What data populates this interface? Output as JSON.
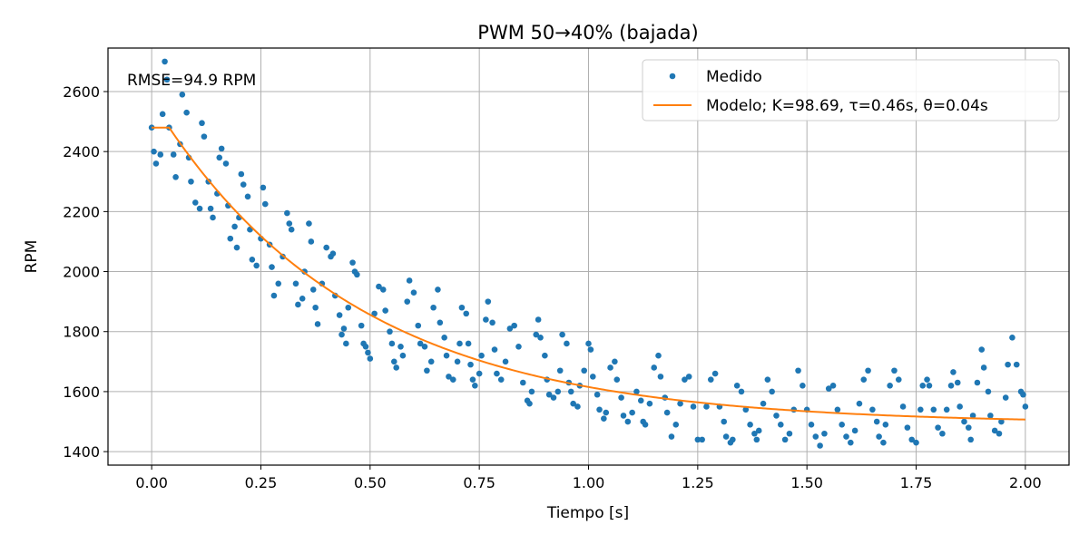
{
  "chart_data": {
    "type": "scatter",
    "title": "PWM 50→40% (bajada)",
    "xlabel": "Tiempo [s]",
    "ylabel": "RPM",
    "xlim": [
      -0.1,
      2.1
    ],
    "ylim": [
      1355,
      2745
    ],
    "xticks": [
      "0.00",
      "0.25",
      "0.50",
      "0.75",
      "1.00",
      "1.25",
      "1.50",
      "1.75",
      "2.00"
    ],
    "yticks": [
      "1400",
      "1600",
      "1800",
      "2000",
      "2200",
      "2400",
      "2600"
    ],
    "grid": true,
    "legend_position": "top-right",
    "annotation": "RMSE=94.9 RPM",
    "series": [
      {
        "name": "Medido",
        "kind": "scatter",
        "color": "#1f77b4",
        "points": [
          [
            0.0,
            2480
          ],
          [
            0.005,
            2400
          ],
          [
            0.01,
            2360
          ],
          [
            0.02,
            2390
          ],
          [
            0.025,
            2525
          ],
          [
            0.03,
            2700
          ],
          [
            0.035,
            2640
          ],
          [
            0.04,
            2480
          ],
          [
            0.05,
            2390
          ],
          [
            0.055,
            2315
          ],
          [
            0.065,
            2425
          ],
          [
            0.07,
            2590
          ],
          [
            0.08,
            2530
          ],
          [
            0.085,
            2380
          ],
          [
            0.09,
            2300
          ],
          [
            0.1,
            2230
          ],
          [
            0.11,
            2210
          ],
          [
            0.115,
            2495
          ],
          [
            0.12,
            2450
          ],
          [
            0.13,
            2300
          ],
          [
            0.135,
            2210
          ],
          [
            0.14,
            2180
          ],
          [
            0.15,
            2260
          ],
          [
            0.155,
            2380
          ],
          [
            0.16,
            2410
          ],
          [
            0.17,
            2360
          ],
          [
            0.175,
            2220
          ],
          [
            0.18,
            2110
          ],
          [
            0.19,
            2150
          ],
          [
            0.195,
            2080
          ],
          [
            0.2,
            2180
          ],
          [
            0.205,
            2325
          ],
          [
            0.21,
            2290
          ],
          [
            0.22,
            2250
          ],
          [
            0.225,
            2140
          ],
          [
            0.23,
            2040
          ],
          [
            0.24,
            2020
          ],
          [
            0.25,
            2110
          ],
          [
            0.255,
            2280
          ],
          [
            0.26,
            2225
          ],
          [
            0.27,
            2090
          ],
          [
            0.275,
            2015
          ],
          [
            0.28,
            1920
          ],
          [
            0.29,
            1960
          ],
          [
            0.3,
            2050
          ],
          [
            0.31,
            2195
          ],
          [
            0.315,
            2160
          ],
          [
            0.32,
            2140
          ],
          [
            0.33,
            1960
          ],
          [
            0.335,
            1890
          ],
          [
            0.345,
            1910
          ],
          [
            0.35,
            2000
          ],
          [
            0.36,
            2160
          ],
          [
            0.365,
            2100
          ],
          [
            0.37,
            1940
          ],
          [
            0.375,
            1880
          ],
          [
            0.38,
            1825
          ],
          [
            0.39,
            1960
          ],
          [
            0.4,
            2080
          ],
          [
            0.41,
            2050
          ],
          [
            0.415,
            2060
          ],
          [
            0.42,
            1920
          ],
          [
            0.43,
            1855
          ],
          [
            0.435,
            1790
          ],
          [
            0.44,
            1810
          ],
          [
            0.445,
            1760
          ],
          [
            0.45,
            1880
          ],
          [
            0.46,
            2030
          ],
          [
            0.465,
            2000
          ],
          [
            0.47,
            1990
          ],
          [
            0.48,
            1820
          ],
          [
            0.485,
            1760
          ],
          [
            0.49,
            1750
          ],
          [
            0.495,
            1730
          ],
          [
            0.5,
            1710
          ],
          [
            0.51,
            1860
          ],
          [
            0.52,
            1950
          ],
          [
            0.53,
            1940
          ],
          [
            0.535,
            1870
          ],
          [
            0.545,
            1800
          ],
          [
            0.55,
            1760
          ],
          [
            0.555,
            1700
          ],
          [
            0.56,
            1680
          ],
          [
            0.57,
            1750
          ],
          [
            0.575,
            1720
          ],
          [
            0.585,
            1900
          ],
          [
            0.59,
            1970
          ],
          [
            0.6,
            1930
          ],
          [
            0.61,
            1820
          ],
          [
            0.615,
            1760
          ],
          [
            0.625,
            1750
          ],
          [
            0.63,
            1670
          ],
          [
            0.64,
            1700
          ],
          [
            0.645,
            1880
          ],
          [
            0.655,
            1940
          ],
          [
            0.66,
            1830
          ],
          [
            0.67,
            1780
          ],
          [
            0.675,
            1720
          ],
          [
            0.68,
            1650
          ],
          [
            0.69,
            1640
          ],
          [
            0.7,
            1700
          ],
          [
            0.705,
            1760
          ],
          [
            0.71,
            1880
          ],
          [
            0.72,
            1860
          ],
          [
            0.725,
            1760
          ],
          [
            0.73,
            1690
          ],
          [
            0.735,
            1640
          ],
          [
            0.74,
            1620
          ],
          [
            0.75,
            1660
          ],
          [
            0.755,
            1720
          ],
          [
            0.765,
            1840
          ],
          [
            0.77,
            1900
          ],
          [
            0.78,
            1830
          ],
          [
            0.785,
            1740
          ],
          [
            0.79,
            1660
          ],
          [
            0.8,
            1640
          ],
          [
            0.81,
            1700
          ],
          [
            0.82,
            1810
          ],
          [
            0.83,
            1820
          ],
          [
            0.84,
            1750
          ],
          [
            0.85,
            1630
          ],
          [
            0.86,
            1570
          ],
          [
            0.865,
            1560
          ],
          [
            0.87,
            1600
          ],
          [
            0.88,
            1790
          ],
          [
            0.885,
            1840
          ],
          [
            0.89,
            1780
          ],
          [
            0.9,
            1720
          ],
          [
            0.905,
            1640
          ],
          [
            0.91,
            1590
          ],
          [
            0.92,
            1580
          ],
          [
            0.93,
            1600
          ],
          [
            0.935,
            1670
          ],
          [
            0.94,
            1790
          ],
          [
            0.95,
            1760
          ],
          [
            0.955,
            1630
          ],
          [
            0.96,
            1600
          ],
          [
            0.965,
            1560
          ],
          [
            0.975,
            1550
          ],
          [
            0.98,
            1620
          ],
          [
            0.99,
            1670
          ],
          [
            1.0,
            1760
          ],
          [
            1.005,
            1740
          ],
          [
            1.01,
            1650
          ],
          [
            1.02,
            1590
          ],
          [
            1.025,
            1540
          ],
          [
            1.035,
            1510
          ],
          [
            1.04,
            1530
          ],
          [
            1.05,
            1680
          ],
          [
            1.06,
            1700
          ],
          [
            1.065,
            1640
          ],
          [
            1.075,
            1580
          ],
          [
            1.08,
            1520
          ],
          [
            1.09,
            1500
          ],
          [
            1.1,
            1530
          ],
          [
            1.11,
            1600
          ],
          [
            1.12,
            1570
          ],
          [
            1.125,
            1500
          ],
          [
            1.13,
            1490
          ],
          [
            1.14,
            1560
          ],
          [
            1.15,
            1680
          ],
          [
            1.16,
            1720
          ],
          [
            1.165,
            1650
          ],
          [
            1.175,
            1580
          ],
          [
            1.18,
            1530
          ],
          [
            1.19,
            1450
          ],
          [
            1.2,
            1490
          ],
          [
            1.21,
            1560
          ],
          [
            1.22,
            1640
          ],
          [
            1.23,
            1650
          ],
          [
            1.24,
            1550
          ],
          [
            1.25,
            1440
          ],
          [
            1.26,
            1440
          ],
          [
            1.27,
            1550
          ],
          [
            1.28,
            1640
          ],
          [
            1.29,
            1660
          ],
          [
            1.3,
            1550
          ],
          [
            1.31,
            1500
          ],
          [
            1.315,
            1450
          ],
          [
            1.325,
            1430
          ],
          [
            1.33,
            1440
          ],
          [
            1.34,
            1620
          ],
          [
            1.35,
            1600
          ],
          [
            1.36,
            1540
          ],
          [
            1.37,
            1490
          ],
          [
            1.38,
            1460
          ],
          [
            1.385,
            1440
          ],
          [
            1.39,
            1470
          ],
          [
            1.4,
            1560
          ],
          [
            1.41,
            1640
          ],
          [
            1.42,
            1600
          ],
          [
            1.43,
            1520
          ],
          [
            1.44,
            1490
          ],
          [
            1.45,
            1440
          ],
          [
            1.46,
            1460
          ],
          [
            1.47,
            1540
          ],
          [
            1.48,
            1670
          ],
          [
            1.49,
            1620
          ],
          [
            1.5,
            1540
          ],
          [
            1.51,
            1490
          ],
          [
            1.52,
            1450
          ],
          [
            1.53,
            1420
          ],
          [
            1.54,
            1460
          ],
          [
            1.55,
            1610
          ],
          [
            1.56,
            1620
          ],
          [
            1.57,
            1540
          ],
          [
            1.58,
            1490
          ],
          [
            1.59,
            1450
          ],
          [
            1.6,
            1430
          ],
          [
            1.61,
            1470
          ],
          [
            1.62,
            1560
          ],
          [
            1.63,
            1640
          ],
          [
            1.64,
            1670
          ],
          [
            1.65,
            1540
          ],
          [
            1.66,
            1500
          ],
          [
            1.665,
            1450
          ],
          [
            1.675,
            1430
          ],
          [
            1.68,
            1490
          ],
          [
            1.69,
            1620
          ],
          [
            1.7,
            1670
          ],
          [
            1.71,
            1640
          ],
          [
            1.72,
            1550
          ],
          [
            1.73,
            1480
          ],
          [
            1.74,
            1440
          ],
          [
            1.75,
            1430
          ],
          [
            1.76,
            1540
          ],
          [
            1.765,
            1620
          ],
          [
            1.775,
            1640
          ],
          [
            1.78,
            1620
          ],
          [
            1.79,
            1540
          ],
          [
            1.8,
            1480
          ],
          [
            1.81,
            1460
          ],
          [
            1.82,
            1540
          ],
          [
            1.83,
            1620
          ],
          [
            1.835,
            1665
          ],
          [
            1.845,
            1630
          ],
          [
            1.85,
            1550
          ],
          [
            1.86,
            1500
          ],
          [
            1.87,
            1480
          ],
          [
            1.875,
            1440
          ],
          [
            1.88,
            1520
          ],
          [
            1.89,
            1630
          ],
          [
            1.9,
            1740
          ],
          [
            1.905,
            1680
          ],
          [
            1.915,
            1600
          ],
          [
            1.92,
            1520
          ],
          [
            1.93,
            1470
          ],
          [
            1.94,
            1460
          ],
          [
            1.945,
            1500
          ],
          [
            1.955,
            1580
          ],
          [
            1.96,
            1690
          ],
          [
            1.97,
            1780
          ],
          [
            1.98,
            1690
          ],
          [
            1.99,
            1600
          ],
          [
            2.0,
            1550
          ],
          [
            1.995,
            1590
          ]
        ]
      },
      {
        "name": "Modelo; K=98.69, τ=0.46s, θ=0.04s",
        "kind": "line",
        "color": "#ff7f0e",
        "model": {
          "y0": 2480,
          "y_final": 1493,
          "K": 98.69,
          "tau": 0.46,
          "theta": 0.04,
          "x_end": 2.0
        }
      }
    ]
  }
}
